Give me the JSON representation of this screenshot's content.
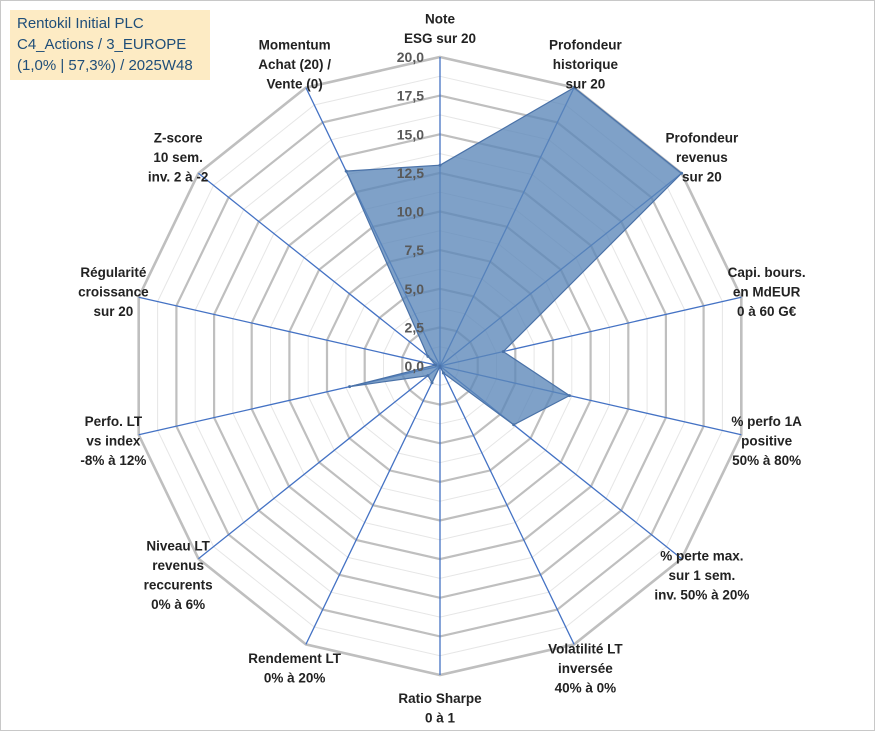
{
  "header": {
    "line1": "Rentokil Initial PLC",
    "line2": "C4_Actions / 3_EUROPE",
    "line3": "(1,0% | 57,3%) / 2025W48"
  },
  "colors": {
    "title_bg": "#fdebc4",
    "title_text": "#1f4e79",
    "grid": "#bfbfbf",
    "axis": "#4472c4",
    "fill": "#5b87b8",
    "stroke": "#4a72a8"
  },
  "chart_data": {
    "type": "radar",
    "title": "Rentokil Initial PLC",
    "rmax": 20,
    "ticks": [
      "0,0",
      "2,5",
      "5,0",
      "7,5",
      "10,0",
      "12,5",
      "15,0",
      "17,5",
      "20,0"
    ],
    "tick_values": [
      0,
      2.5,
      5,
      7.5,
      10,
      12.5,
      15,
      17.5,
      20
    ],
    "axes": [
      {
        "lines": [
          "Note",
          "ESG sur 20"
        ],
        "value": 13.0
      },
      {
        "lines": [
          "Profondeur",
          "historique",
          "sur 20"
        ],
        "value": 20.0
      },
      {
        "lines": [
          "Profondeur",
          "revenus",
          "sur 20"
        ],
        "value": 20.0
      },
      {
        "lines": [
          "Capi. bours.",
          "en MdEUR",
          "0 à 60 G€"
        ],
        "value": 4.2
      },
      {
        "lines": [
          "% perfo 1A",
          "positive",
          "50% à 80%"
        ],
        "value": 8.6
      },
      {
        "lines": [
          "% perte max.",
          "sur 1 sem.",
          "inv. 50% à 20%"
        ],
        "value": 6.1
      },
      {
        "lines": [
          "Volatilité LT",
          "inversée",
          "40% à 0%"
        ],
        "value": 0.5
      },
      {
        "lines": [
          "Ratio Sharpe",
          "0 à 1"
        ],
        "value": 0.0
      },
      {
        "lines": [
          "Rendement LT",
          "0% à 20%"
        ],
        "value": 1.2
      },
      {
        "lines": [
          "Niveau LT",
          "revenus",
          "reccurents",
          "0% à 6%"
        ],
        "value": 1.0
      },
      {
        "lines": [
          "Perfo. LT",
          "vs index",
          "-8% à 12%"
        ],
        "value": 6.0
      },
      {
        "lines": [
          "Régularité",
          "croissance",
          "sur 20"
        ],
        "value": 0.3
      },
      {
        "lines": [
          "Z-score",
          "10 sem.",
          "inv. 2 à -2"
        ],
        "value": 1.0
      },
      {
        "lines": [
          "Momentum",
          "Achat (20) /",
          "Vente (0)"
        ],
        "value": 14.0
      }
    ]
  }
}
